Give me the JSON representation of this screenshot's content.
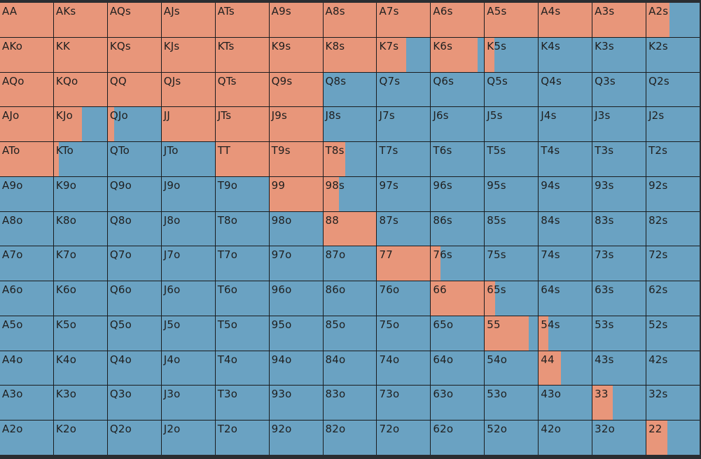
{
  "colors": {
    "raise": "#e8967a",
    "fold": "#6aa2c2",
    "grid_line": "#1a1c1f"
  },
  "hands": [
    [
      "AA",
      "AKs",
      "AQs",
      "AJs",
      "ATs",
      "A9s",
      "A8s",
      "A7s",
      "A6s",
      "A5s",
      "A4s",
      "A3s",
      "A2s"
    ],
    [
      "AKo",
      "KK",
      "KQs",
      "KJs",
      "KTs",
      "K9s",
      "K8s",
      "K7s",
      "K6s",
      "K5s",
      "K4s",
      "K3s",
      "K2s"
    ],
    [
      "AQo",
      "KQo",
      "QQ",
      "QJs",
      "QTs",
      "Q9s",
      "Q8s",
      "Q7s",
      "Q6s",
      "Q5s",
      "Q4s",
      "Q3s",
      "Q2s"
    ],
    [
      "AJo",
      "KJo",
      "QJo",
      "JJ",
      "JTs",
      "J9s",
      "J8s",
      "J7s",
      "J6s",
      "J5s",
      "J4s",
      "J3s",
      "J2s"
    ],
    [
      "ATo",
      "KTo",
      "QTo",
      "JTo",
      "TT",
      "T9s",
      "T8s",
      "T7s",
      "T6s",
      "T5s",
      "T4s",
      "T3s",
      "T2s"
    ],
    [
      "A9o",
      "K9o",
      "Q9o",
      "J9o",
      "T9o",
      "99",
      "98s",
      "97s",
      "96s",
      "95s",
      "94s",
      "93s",
      "92s"
    ],
    [
      "A8o",
      "K8o",
      "Q8o",
      "J8o",
      "T8o",
      "98o",
      "88",
      "87s",
      "86s",
      "85s",
      "84s",
      "83s",
      "82s"
    ],
    [
      "A7o",
      "K7o",
      "Q7o",
      "J7o",
      "T7o",
      "97o",
      "87o",
      "77",
      "76s",
      "75s",
      "74s",
      "73s",
      "72s"
    ],
    [
      "A6o",
      "K6o",
      "Q6o",
      "J6o",
      "T6o",
      "96o",
      "86o",
      "76o",
      "66",
      "65s",
      "64s",
      "63s",
      "62s"
    ],
    [
      "A5o",
      "K5o",
      "Q5o",
      "J5o",
      "T5o",
      "95o",
      "85o",
      "75o",
      "65o",
      "55",
      "54s",
      "53s",
      "52s"
    ],
    [
      "A4o",
      "K4o",
      "Q4o",
      "J4o",
      "T4o",
      "94o",
      "84o",
      "74o",
      "64o",
      "54o",
      "44",
      "43s",
      "42s"
    ],
    [
      "A3o",
      "K3o",
      "Q3o",
      "J3o",
      "T3o",
      "93o",
      "83o",
      "73o",
      "63o",
      "53o",
      "43o",
      "33",
      "32s"
    ],
    [
      "A2o",
      "K2o",
      "Q2o",
      "J2o",
      "T2o",
      "92o",
      "82o",
      "72o",
      "62o",
      "52o",
      "42o",
      "32o",
      "22"
    ]
  ],
  "raise_fraction": [
    [
      1,
      1,
      1,
      1,
      1,
      1,
      1,
      1,
      1,
      1,
      1,
      1,
      0.43
    ],
    [
      1,
      1,
      1,
      1,
      1,
      1,
      1,
      0.55,
      0.88,
      0.18,
      0,
      0,
      0
    ],
    [
      1,
      1,
      1,
      1,
      1,
      1,
      0,
      0,
      0,
      0,
      0,
      0,
      0
    ],
    [
      1,
      0.53,
      0.12,
      1,
      1,
      1,
      0,
      0,
      0,
      0,
      0,
      0,
      0
    ],
    [
      1,
      0.09,
      0,
      0,
      1,
      1,
      0.42,
      0,
      0,
      0,
      0,
      0,
      0
    ],
    [
      0,
      0,
      0,
      0,
      0,
      1,
      0.29,
      0,
      0,
      0,
      0,
      0,
      0
    ],
    [
      0,
      0,
      0,
      0,
      0,
      0,
      1,
      0,
      0,
      0,
      0,
      0,
      0
    ],
    [
      0,
      0,
      0,
      0,
      0,
      0,
      0,
      1,
      0.18,
      0,
      0,
      0,
      0
    ],
    [
      0,
      0,
      0,
      0,
      0,
      0,
      0,
      0,
      1,
      0.2,
      0,
      0,
      0
    ],
    [
      0,
      0,
      0,
      0,
      0,
      0,
      0,
      0,
      0,
      0.82,
      0.18,
      0,
      0
    ],
    [
      0,
      0,
      0,
      0,
      0,
      0,
      0,
      0,
      0,
      0,
      0.42,
      0,
      0
    ],
    [
      0,
      0,
      0,
      0,
      0,
      0,
      0,
      0,
      0,
      0,
      0,
      0.38,
      0
    ],
    [
      0,
      0,
      0,
      0,
      0,
      0,
      0,
      0,
      0,
      0,
      0,
      0,
      0.4
    ]
  ]
}
